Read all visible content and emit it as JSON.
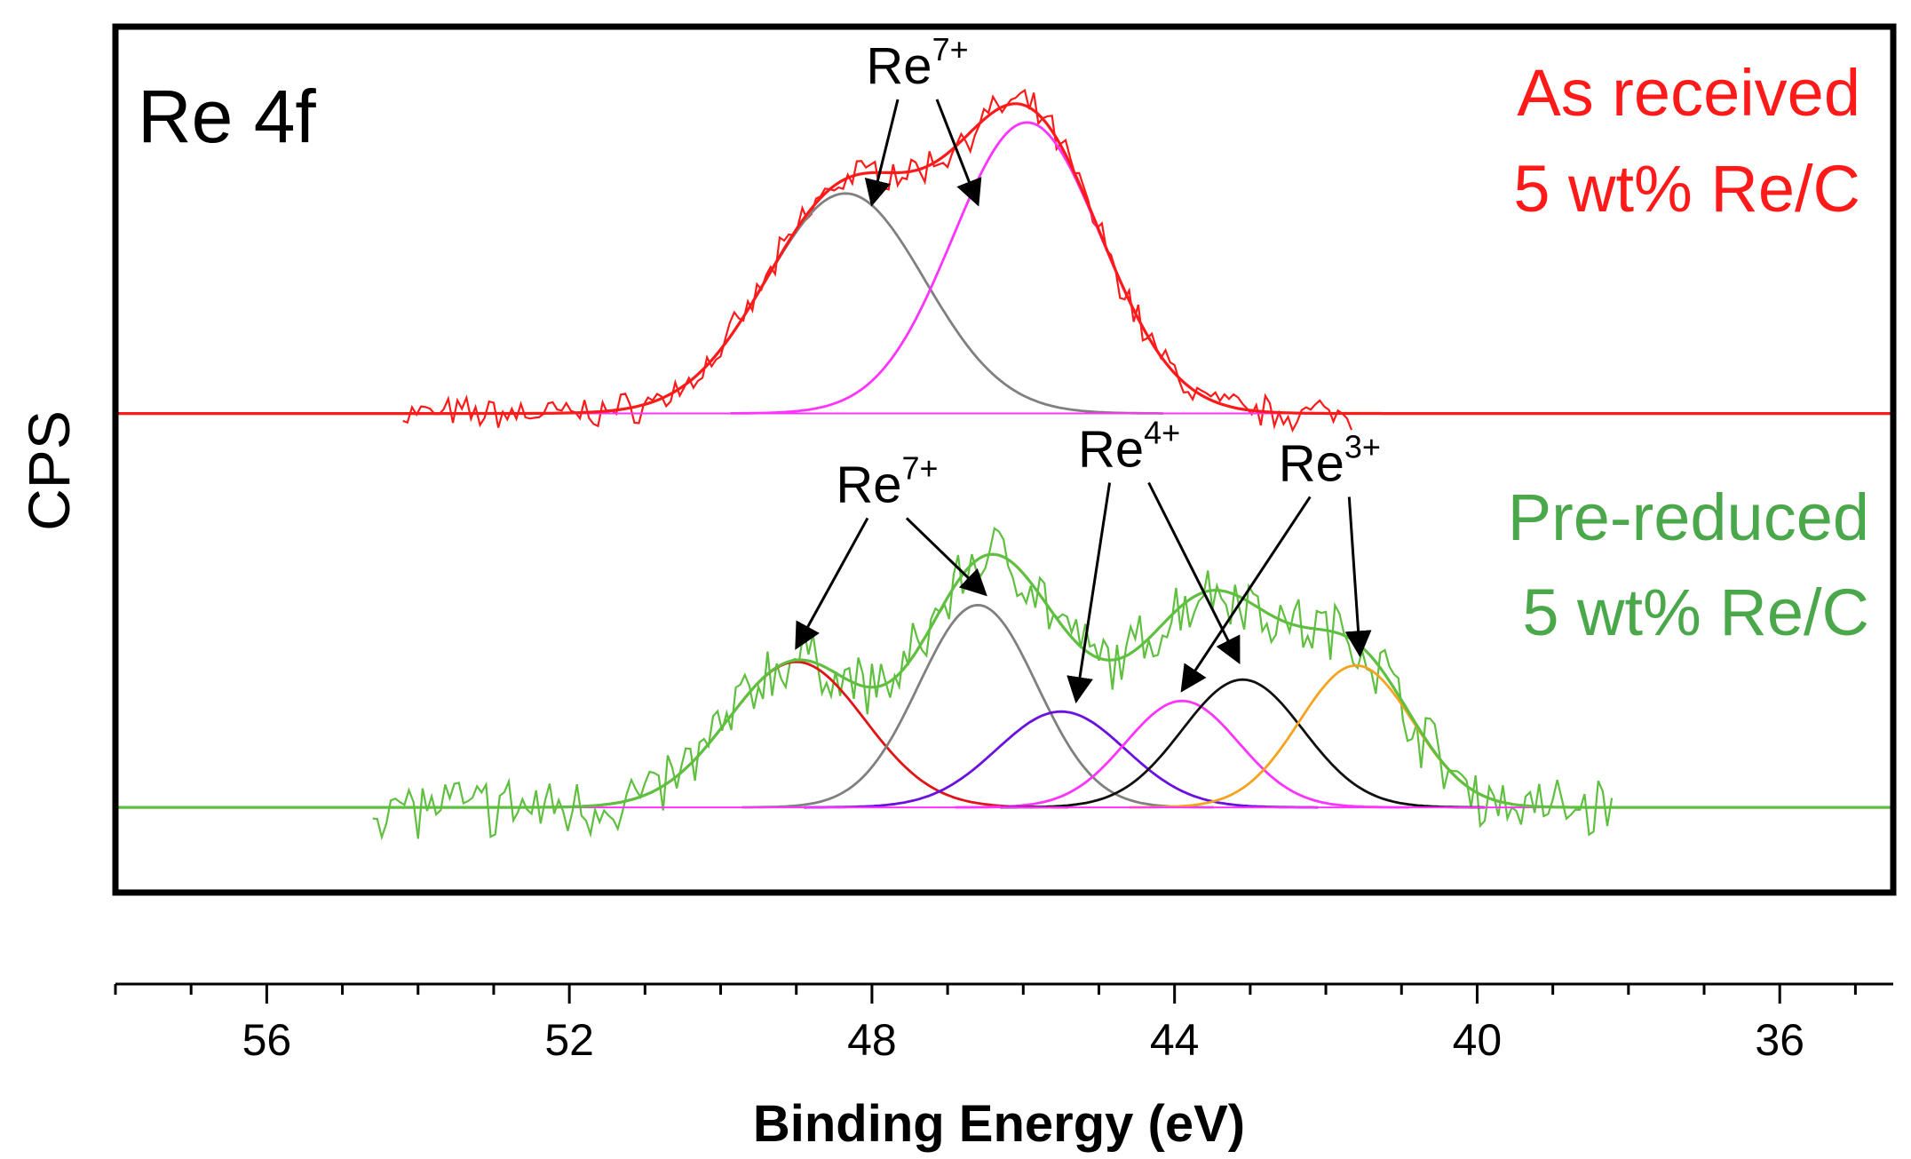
{
  "chart_data": {
    "type": "line",
    "panel_label": "Re 4f",
    "xlabel": "Binding Energy (eV)",
    "ylabel": "CPS",
    "x_reversed": true,
    "xlim": [
      58,
      34.5
    ],
    "ylim": [
      -0.12,
      1.1
    ],
    "x_ticks": [
      56,
      52,
      48,
      44,
      40,
      36
    ],
    "x_tick_labels": [
      "56",
      "52",
      "48",
      "44",
      "40",
      "36"
    ],
    "grid": false,
    "colors": {
      "as_received": "#ff1a1a",
      "pre_reduced_text": "#4aa84a",
      "pre_reduced_line": "#5fbf3f",
      "peak_grey": "#808080",
      "peak_magenta": "#ff33ff",
      "peak_red": "#e01414",
      "peak_blue": "#6a10e0",
      "peak_black": "#111111",
      "peak_orange": "#f5a31e"
    },
    "samples": [
      {
        "line1": "As received",
        "line2": "5 wt% Re/C",
        "baseline": 0.555,
        "envelope_xrange": [
          34.5,
          58
        ],
        "raw_xrange": [
          41.6,
          54.2
        ],
        "noise": 0.018,
        "components": [
          {
            "center": 48.35,
            "height": 0.31,
            "sigma": 1.05,
            "color": "#808080"
          },
          {
            "center": 45.95,
            "height": 0.41,
            "sigma": 0.98,
            "color": "#ff33ff"
          }
        ],
        "annotations": [
          {
            "ion": "Re",
            "charge": "7+",
            "label_x": 47.4,
            "label_y": 1.02,
            "arrows": [
              {
                "x": 48.0,
                "y": 0.85
              },
              {
                "x": 46.6,
                "y": 0.85
              }
            ]
          }
        ]
      },
      {
        "line1": "Pre-reduced",
        "line2": "5 wt% Re/C",
        "baseline": 0.0,
        "envelope_xrange": [
          34.5,
          58
        ],
        "raw_xrange": [
          38.2,
          54.6
        ],
        "noise": 0.035,
        "components": [
          {
            "center": 49.0,
            "height": 0.205,
            "sigma": 0.9,
            "color": "#e01414"
          },
          {
            "center": 46.6,
            "height": 0.285,
            "sigma": 0.78,
            "color": "#808080"
          },
          {
            "center": 45.5,
            "height": 0.135,
            "sigma": 0.85,
            "color": "#6a10e0"
          },
          {
            "center": 43.9,
            "height": 0.15,
            "sigma": 0.75,
            "color": "#ff33ff"
          },
          {
            "center": 43.1,
            "height": 0.18,
            "sigma": 0.8,
            "color": "#111111"
          },
          {
            "center": 41.6,
            "height": 0.2,
            "sigma": 0.75,
            "color": "#f5a31e"
          }
        ],
        "annotations": [
          {
            "ion": "Re",
            "charge": "7+",
            "label_x": 47.8,
            "label_y": 0.43,
            "arrows": [
              {
                "x": 49.0,
                "y": 0.225
              },
              {
                "x": 46.5,
                "y": 0.3
              }
            ]
          },
          {
            "ion": "Re",
            "charge": "4+",
            "label_x": 44.6,
            "label_y": 0.48,
            "arrows": [
              {
                "x": 45.3,
                "y": 0.15
              },
              {
                "x": 43.15,
                "y": 0.205
              }
            ]
          },
          {
            "ion": "Re",
            "charge": "3+",
            "label_x": 41.95,
            "label_y": 0.46,
            "arrows": [
              {
                "x": 43.9,
                "y": 0.165
              },
              {
                "x": 41.55,
                "y": 0.215
              }
            ]
          }
        ]
      }
    ]
  }
}
